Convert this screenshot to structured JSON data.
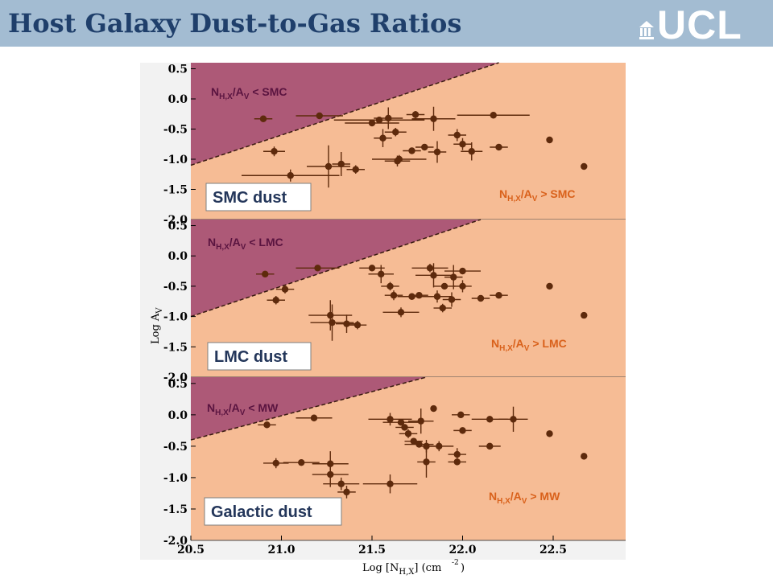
{
  "slide": {
    "title": "Host Galaxy Dust-to-Gas Ratios",
    "logo_text": "UCL"
  },
  "colors": {
    "header_bg": "#a3bcd2",
    "title": "#1f3f6b",
    "region_below": "#f6bc95",
    "region_above": "#ad5977",
    "points": "#5e2a0c",
    "label_upper": "#5a1440",
    "label_lower": "#d9611b",
    "dust_label": "#23365a"
  },
  "chart_data": {
    "type": "scatter",
    "xlabel": "Log [N_H,X] (cm^-2)",
    "ylabel": "Log A_V",
    "xlim": [
      20.5,
      22.9
    ],
    "ylim": [
      -2.0,
      0.6
    ],
    "xticks": [
      "20.5",
      "21.0",
      "21.5",
      "22.0",
      "22.5"
    ],
    "yticks": [
      "0.5",
      "0.0",
      "-0.5",
      "-1.0",
      "-1.5",
      "-2.0"
    ],
    "panels": [
      {
        "dust_label": "SMC dust",
        "region_above_label": "N_H,X/A_V < SMC",
        "region_below_label": "N_H,X/A_V > SMC",
        "boundary": [
          [
            20.5,
            -1.1
          ],
          [
            22.2,
            0.6
          ]
        ],
        "points": [
          {
            "x": 20.9,
            "y": -0.33,
            "xerr": 0.05,
            "yerr": 0.05
          },
          {
            "x": 21.21,
            "y": -0.28,
            "xerr": 0.13,
            "yerr": 0.05
          },
          {
            "x": 20.96,
            "y": -0.87,
            "xerr": 0.06,
            "yerr": 0.08
          },
          {
            "x": 21.05,
            "y": -1.27,
            "xerr": 0.27,
            "yerr": 0.1
          },
          {
            "x": 21.26,
            "y": -1.12,
            "xerr": 0.12,
            "yerr": 0.35
          },
          {
            "x": 21.33,
            "y": -1.08,
            "xerr": 0.05,
            "yerr": 0.2
          },
          {
            "x": 21.41,
            "y": -1.17,
            "xerr": 0.05,
            "yerr": 0.07
          },
          {
            "x": 21.5,
            "y": -0.4,
            "xerr": 0.15,
            "yerr": 0.05
          },
          {
            "x": 21.54,
            "y": -0.35,
            "xerr": 0.25,
            "yerr": 0.05
          },
          {
            "x": 21.59,
            "y": -0.32,
            "xerr": 0.08,
            "yerr": 0.18
          },
          {
            "x": 21.63,
            "y": -0.55,
            "xerr": 0.06,
            "yerr": 0.07
          },
          {
            "x": 21.56,
            "y": -0.65,
            "xerr": 0.05,
            "yerr": 0.15
          },
          {
            "x": 21.64,
            "y": -1.03,
            "xerr": 0.07,
            "yerr": 0.09
          },
          {
            "x": 21.65,
            "y": -1.0,
            "xerr": 0.15,
            "yerr": 0.07
          },
          {
            "x": 21.72,
            "y": -0.86,
            "xerr": 0.05,
            "yerr": 0.05
          },
          {
            "x": 21.74,
            "y": -0.26,
            "xerr": 0.05,
            "yerr": 0.06
          },
          {
            "x": 21.79,
            "y": -0.8,
            "xerr": 0.05,
            "yerr": 0.05
          },
          {
            "x": 21.84,
            "y": -0.33,
            "xerr": 0.12,
            "yerr": 0.2
          },
          {
            "x": 21.86,
            "y": -0.88,
            "xerr": 0.05,
            "yerr": 0.18
          },
          {
            "x": 21.97,
            "y": -0.6,
            "xerr": 0.05,
            "yerr": 0.1
          },
          {
            "x": 22.0,
            "y": -0.75,
            "xerr": 0.05,
            "yerr": 0.1
          },
          {
            "x": 22.05,
            "y": -0.87,
            "xerr": 0.06,
            "yerr": 0.15
          },
          {
            "x": 22.17,
            "y": -0.27,
            "xerr": 0.2,
            "yerr": 0.05
          },
          {
            "x": 22.2,
            "y": -0.8,
            "xerr": 0.05,
            "yerr": 0.05
          },
          {
            "x": 22.48,
            "y": -0.68,
            "xerr": 0.0,
            "yerr": 0.05
          },
          {
            "x": 22.67,
            "y": -1.12,
            "xerr": 0.0,
            "yerr": 0.05
          }
        ]
      },
      {
        "dust_label": "LMC dust",
        "region_above_label": "N_H,X/A_V < LMC",
        "region_below_label": "N_H,X/A_V > LMC",
        "boundary": [
          [
            20.5,
            -1.0
          ],
          [
            22.1,
            0.6
          ]
        ],
        "points": [
          {
            "x": 20.91,
            "y": -0.3,
            "xerr": 0.05,
            "yerr": 0.05
          },
          {
            "x": 21.2,
            "y": -0.2,
            "xerr": 0.12,
            "yerr": 0.05
          },
          {
            "x": 21.02,
            "y": -0.55,
            "xerr": 0.05,
            "yerr": 0.07
          },
          {
            "x": 20.97,
            "y": -0.73,
            "xerr": 0.05,
            "yerr": 0.07
          },
          {
            "x": 21.27,
            "y": -0.98,
            "xerr": 0.12,
            "yerr": 0.25
          },
          {
            "x": 21.28,
            "y": -1.1,
            "xerr": 0.12,
            "yerr": 0.3
          },
          {
            "x": 21.36,
            "y": -1.12,
            "xerr": 0.06,
            "yerr": 0.15
          },
          {
            "x": 21.42,
            "y": -1.14,
            "xerr": 0.05,
            "yerr": 0.07
          },
          {
            "x": 21.5,
            "y": -0.2,
            "xerr": 0.07,
            "yerr": 0.05
          },
          {
            "x": 21.55,
            "y": -0.3,
            "xerr": 0.07,
            "yerr": 0.15
          },
          {
            "x": 21.6,
            "y": -0.5,
            "xerr": 0.05,
            "yerr": 0.07
          },
          {
            "x": 21.62,
            "y": -0.65,
            "xerr": 0.05,
            "yerr": 0.08
          },
          {
            "x": 21.66,
            "y": -0.93,
            "xerr": 0.1,
            "yerr": 0.08
          },
          {
            "x": 21.72,
            "y": -0.67,
            "xerr": 0.08,
            "yerr": 0.05
          },
          {
            "x": 21.76,
            "y": -0.65,
            "xerr": 0.05,
            "yerr": 0.05
          },
          {
            "x": 21.82,
            "y": -0.2,
            "xerr": 0.1,
            "yerr": 0.07
          },
          {
            "x": 21.84,
            "y": -0.32,
            "xerr": 0.1,
            "yerr": 0.2
          },
          {
            "x": 21.86,
            "y": -0.67,
            "xerr": 0.08,
            "yerr": 0.1
          },
          {
            "x": 21.89,
            "y": -0.86,
            "xerr": 0.05,
            "yerr": 0.07
          },
          {
            "x": 21.9,
            "y": -0.5,
            "xerr": 0.06,
            "yerr": 0.05
          },
          {
            "x": 21.94,
            "y": -0.72,
            "xerr": 0.05,
            "yerr": 0.12
          },
          {
            "x": 22.0,
            "y": -0.25,
            "xerr": 0.1,
            "yerr": 0.05
          },
          {
            "x": 21.95,
            "y": -0.35,
            "xerr": 0.05,
            "yerr": 0.2
          },
          {
            "x": 22.0,
            "y": -0.5,
            "xerr": 0.05,
            "yerr": 0.1
          },
          {
            "x": 22.1,
            "y": -0.7,
            "xerr": 0.05,
            "yerr": 0.05
          },
          {
            "x": 22.2,
            "y": -0.65,
            "xerr": 0.05,
            "yerr": 0.05
          },
          {
            "x": 22.48,
            "y": -0.5,
            "xerr": 0.0,
            "yerr": 0.05
          },
          {
            "x": 22.67,
            "y": -0.98,
            "xerr": 0.0,
            "yerr": 0.05
          }
        ]
      },
      {
        "dust_label": "Galactic dust",
        "region_above_label": "N_H,X/A_V < MW",
        "region_below_label": "N_H,X/A_V > MW",
        "boundary": [
          [
            20.5,
            -0.4
          ],
          [
            21.8,
            0.6
          ]
        ],
        "points": [
          {
            "x": 20.92,
            "y": -0.16,
            "xerr": 0.05,
            "yerr": 0.05
          },
          {
            "x": 21.18,
            "y": -0.05,
            "xerr": 0.1,
            "yerr": 0.05
          },
          {
            "x": 20.97,
            "y": -0.77,
            "xerr": 0.07,
            "yerr": 0.08
          },
          {
            "x": 21.11,
            "y": -0.76,
            "xerr": 0.1,
            "yerr": 0.05
          },
          {
            "x": 21.27,
            "y": -0.78,
            "xerr": 0.1,
            "yerr": 0.2
          },
          {
            "x": 21.27,
            "y": -0.95,
            "xerr": 0.1,
            "yerr": 0.2
          },
          {
            "x": 21.33,
            "y": -1.1,
            "xerr": 0.1,
            "yerr": 0.1
          },
          {
            "x": 21.36,
            "y": -1.23,
            "xerr": 0.05,
            "yerr": 0.1
          },
          {
            "x": 21.6,
            "y": -1.1,
            "xerr": 0.15,
            "yerr": 0.15
          },
          {
            "x": 21.6,
            "y": -0.07,
            "xerr": 0.12,
            "yerr": 0.1
          },
          {
            "x": 21.66,
            "y": -0.12,
            "xerr": 0.1,
            "yerr": 0.05
          },
          {
            "x": 21.68,
            "y": -0.2,
            "xerr": 0.05,
            "yerr": 0.05
          },
          {
            "x": 21.7,
            "y": -0.3,
            "xerr": 0.05,
            "yerr": 0.07
          },
          {
            "x": 21.73,
            "y": -0.42,
            "xerr": 0.05,
            "yerr": 0.05
          },
          {
            "x": 21.76,
            "y": -0.47,
            "xerr": 0.08,
            "yerr": 0.05
          },
          {
            "x": 21.77,
            "y": -0.1,
            "xerr": 0.07,
            "yerr": 0.2
          },
          {
            "x": 21.8,
            "y": -0.5,
            "xerr": 0.05,
            "yerr": 0.1
          },
          {
            "x": 21.8,
            "y": -0.75,
            "xerr": 0.05,
            "yerr": 0.25
          },
          {
            "x": 21.84,
            "y": 0.1,
            "xerr": 0.0,
            "yerr": 0.05
          },
          {
            "x": 21.87,
            "y": -0.5,
            "xerr": 0.08,
            "yerr": 0.08
          },
          {
            "x": 21.97,
            "y": -0.63,
            "xerr": 0.05,
            "yerr": 0.1
          },
          {
            "x": 21.97,
            "y": -0.75,
            "xerr": 0.05,
            "yerr": 0.05
          },
          {
            "x": 21.99,
            "y": 0.0,
            "xerr": 0.05,
            "yerr": 0.05
          },
          {
            "x": 22.0,
            "y": -0.25,
            "xerr": 0.05,
            "yerr": 0.05
          },
          {
            "x": 22.15,
            "y": -0.07,
            "xerr": 0.1,
            "yerr": 0.05
          },
          {
            "x": 22.15,
            "y": -0.5,
            "xerr": 0.06,
            "yerr": 0.05
          },
          {
            "x": 22.28,
            "y": -0.07,
            "xerr": 0.08,
            "yerr": 0.2
          },
          {
            "x": 22.48,
            "y": -0.3,
            "xerr": 0.0,
            "yerr": 0.05
          },
          {
            "x": 22.67,
            "y": -0.66,
            "xerr": 0.0,
            "yerr": 0.05
          }
        ]
      }
    ]
  }
}
